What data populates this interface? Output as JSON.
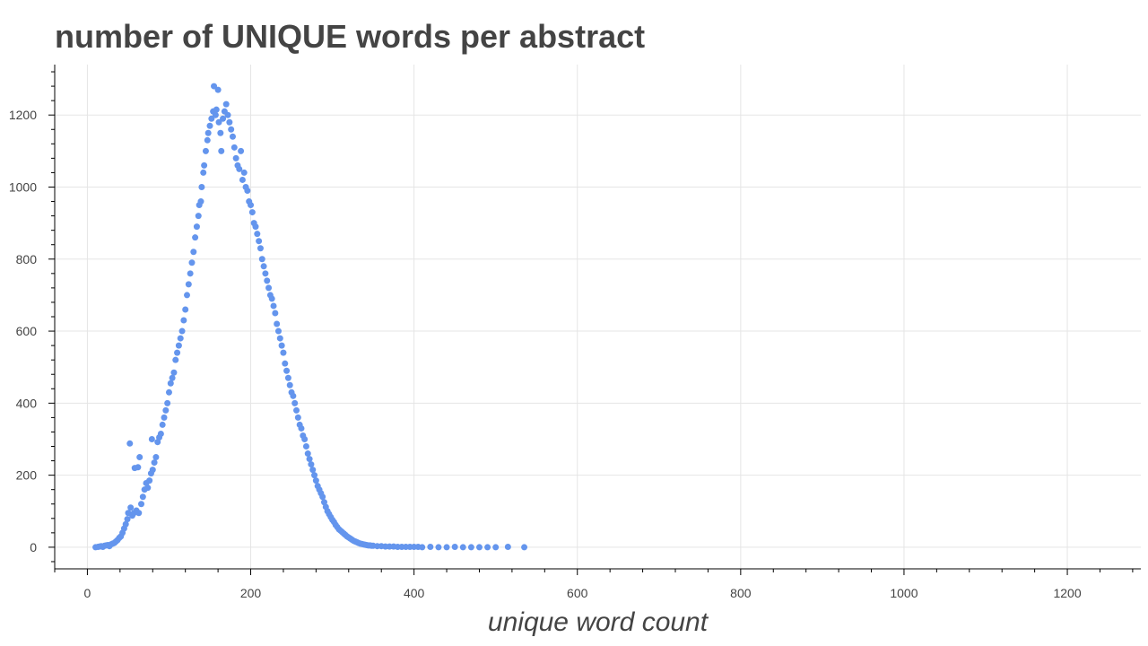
{
  "chart_data": {
    "type": "scatter",
    "title": "number of UNIQUE words per abstract",
    "xlabel": "unique word count",
    "ylabel": "",
    "xlim": [
      -40,
      1290
    ],
    "ylim": [
      -60,
      1340
    ],
    "xticks": [
      0,
      200,
      400,
      600,
      800,
      1000,
      1200
    ],
    "xtick_labels": [
      "0",
      "200",
      "400",
      "600",
      "800",
      "1000",
      "1200"
    ],
    "yticks": [
      0,
      200,
      400,
      600,
      800,
      1000,
      1200
    ],
    "ytick_labels": [
      "0",
      "200",
      "400",
      "600",
      "800",
      "1000",
      "1200"
    ],
    "grid": true,
    "marker_color": "#6495ed",
    "series": [
      {
        "points": [
          [
            10,
            0
          ],
          [
            13,
            1
          ],
          [
            15,
            2
          ],
          [
            17,
            3
          ],
          [
            19,
            1
          ],
          [
            21,
            4
          ],
          [
            23,
            5
          ],
          [
            25,
            6
          ],
          [
            27,
            3
          ],
          [
            29,
            8
          ],
          [
            31,
            10
          ],
          [
            33,
            12
          ],
          [
            35,
            16
          ],
          [
            37,
            20
          ],
          [
            39,
            26
          ],
          [
            41,
            30
          ],
          [
            43,
            40
          ],
          [
            45,
            52
          ],
          [
            47,
            64
          ],
          [
            49,
            78
          ],
          [
            50,
            95
          ],
          [
            52,
            288
          ],
          [
            53,
            110
          ],
          [
            55,
            88
          ],
          [
            57,
            95
          ],
          [
            58,
            220
          ],
          [
            60,
            102
          ],
          [
            62,
            222
          ],
          [
            63,
            95
          ],
          [
            64,
            250
          ],
          [
            66,
            120
          ],
          [
            68,
            140
          ],
          [
            70,
            160
          ],
          [
            72,
            178
          ],
          [
            74,
            165
          ],
          [
            76,
            185
          ],
          [
            78,
            205
          ],
          [
            79,
            300
          ],
          [
            80,
            215
          ],
          [
            82,
            235
          ],
          [
            84,
            250
          ],
          [
            86,
            292
          ],
          [
            88,
            305
          ],
          [
            90,
            315
          ],
          [
            92,
            340
          ],
          [
            94,
            360
          ],
          [
            96,
            380
          ],
          [
            98,
            400
          ],
          [
            100,
            430
          ],
          [
            102,
            455
          ],
          [
            104,
            470
          ],
          [
            106,
            485
          ],
          [
            108,
            520
          ],
          [
            110,
            540
          ],
          [
            112,
            560
          ],
          [
            114,
            580
          ],
          [
            116,
            600
          ],
          [
            118,
            630
          ],
          [
            120,
            660
          ],
          [
            122,
            700
          ],
          [
            124,
            730
          ],
          [
            126,
            760
          ],
          [
            128,
            790
          ],
          [
            130,
            820
          ],
          [
            132,
            860
          ],
          [
            134,
            890
          ],
          [
            136,
            920
          ],
          [
            137,
            950
          ],
          [
            139,
            960
          ],
          [
            140,
            1000
          ],
          [
            142,
            1040
          ],
          [
            143,
            1060
          ],
          [
            145,
            1100
          ],
          [
            147,
            1130
          ],
          [
            148,
            1150
          ],
          [
            150,
            1170
          ],
          [
            152,
            1190
          ],
          [
            154,
            1210
          ],
          [
            155,
            1280
          ],
          [
            157,
            1200
          ],
          [
            158,
            1215
          ],
          [
            160,
            1270
          ],
          [
            161,
            1180
          ],
          [
            163,
            1150
          ],
          [
            164,
            1100
          ],
          [
            166,
            1190
          ],
          [
            168,
            1210
          ],
          [
            170,
            1230
          ],
          [
            172,
            1200
          ],
          [
            174,
            1180
          ],
          [
            176,
            1160
          ],
          [
            178,
            1140
          ],
          [
            180,
            1110
          ],
          [
            182,
            1080
          ],
          [
            184,
            1060
          ],
          [
            186,
            1050
          ],
          [
            188,
            1100
          ],
          [
            190,
            1020
          ],
          [
            192,
            1040
          ],
          [
            194,
            1000
          ],
          [
            196,
            990
          ],
          [
            198,
            960
          ],
          [
            200,
            950
          ],
          [
            202,
            930
          ],
          [
            204,
            900
          ],
          [
            206,
            890
          ],
          [
            208,
            870
          ],
          [
            210,
            850
          ],
          [
            212,
            830
          ],
          [
            214,
            800
          ],
          [
            216,
            780
          ],
          [
            218,
            760
          ],
          [
            220,
            740
          ],
          [
            222,
            720
          ],
          [
            224,
            700
          ],
          [
            226,
            690
          ],
          [
            228,
            670
          ],
          [
            230,
            650
          ],
          [
            232,
            620
          ],
          [
            234,
            600
          ],
          [
            236,
            580
          ],
          [
            238,
            560
          ],
          [
            240,
            540
          ],
          [
            242,
            510
          ],
          [
            244,
            490
          ],
          [
            246,
            470
          ],
          [
            248,
            450
          ],
          [
            250,
            430
          ],
          [
            252,
            420
          ],
          [
            254,
            400
          ],
          [
            256,
            380
          ],
          [
            258,
            360
          ],
          [
            260,
            340
          ],
          [
            262,
            330
          ],
          [
            264,
            310
          ],
          [
            266,
            300
          ],
          [
            268,
            280
          ],
          [
            270,
            260
          ],
          [
            272,
            245
          ],
          [
            274,
            230
          ],
          [
            276,
            215
          ],
          [
            278,
            200
          ],
          [
            280,
            185
          ],
          [
            282,
            170
          ],
          [
            284,
            160
          ],
          [
            286,
            150
          ],
          [
            288,
            140
          ],
          [
            290,
            125
          ],
          [
            292,
            112
          ],
          [
            294,
            100
          ],
          [
            296,
            92
          ],
          [
            298,
            84
          ],
          [
            300,
            76
          ],
          [
            302,
            70
          ],
          [
            304,
            62
          ],
          [
            306,
            56
          ],
          [
            308,
            50
          ],
          [
            310,
            46
          ],
          [
            312,
            42
          ],
          [
            314,
            38
          ],
          [
            316,
            34
          ],
          [
            318,
            30
          ],
          [
            320,
            27
          ],
          [
            322,
            24
          ],
          [
            324,
            21
          ],
          [
            326,
            18
          ],
          [
            328,
            16
          ],
          [
            330,
            14
          ],
          [
            332,
            12
          ],
          [
            334,
            10
          ],
          [
            336,
            9
          ],
          [
            338,
            8
          ],
          [
            340,
            7
          ],
          [
            342,
            6
          ],
          [
            344,
            5
          ],
          [
            346,
            5
          ],
          [
            348,
            4
          ],
          [
            350,
            4
          ],
          [
            355,
            3
          ],
          [
            360,
            3
          ],
          [
            365,
            2
          ],
          [
            370,
            2
          ],
          [
            375,
            2
          ],
          [
            380,
            1
          ],
          [
            385,
            1
          ],
          [
            390,
            1
          ],
          [
            395,
            1
          ],
          [
            400,
            1
          ],
          [
            405,
            1
          ],
          [
            410,
            0
          ],
          [
            420,
            1
          ],
          [
            430,
            0
          ],
          [
            440,
            0
          ],
          [
            450,
            1
          ],
          [
            460,
            0
          ],
          [
            470,
            0
          ],
          [
            480,
            0
          ],
          [
            490,
            0
          ],
          [
            500,
            0
          ],
          [
            515,
            1
          ],
          [
            535,
            0
          ]
        ]
      }
    ]
  }
}
